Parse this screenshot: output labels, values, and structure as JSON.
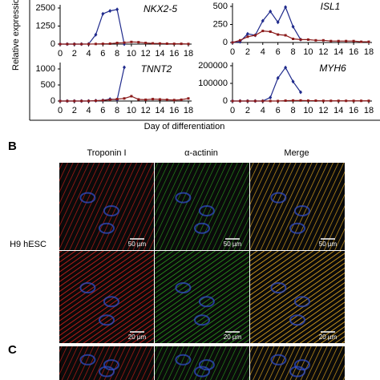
{
  "chart_data": [
    {
      "type": "line",
      "title": "NKX2-5",
      "x": [
        0,
        1,
        2,
        3,
        4,
        5,
        6,
        7,
        8,
        9,
        10,
        11,
        12,
        13,
        14,
        15,
        16,
        17,
        18
      ],
      "xlim": [
        0,
        18
      ],
      "xticks": [
        0,
        2,
        4,
        6,
        8,
        10,
        12,
        14,
        16,
        18
      ],
      "ylim": [
        0,
        2500
      ],
      "yticks": [
        0,
        1250,
        2500
      ],
      "series": [
        {
          "color": "#1f2a8c",
          "marker": "diamond",
          "values": [
            0,
            0,
            0,
            0,
            10,
            650,
            2100,
            2300,
            2400,
            0,
            null,
            null,
            null,
            null,
            null,
            null,
            null,
            null,
            null
          ]
        },
        {
          "color": "#8b1a1a",
          "marker": "square",
          "values": [
            0,
            0,
            0,
            0,
            0,
            10,
            20,
            30,
            80,
            100,
            150,
            130,
            80,
            50,
            40,
            30,
            20,
            20,
            10
          ]
        }
      ]
    },
    {
      "type": "line",
      "title": "ISL1",
      "x": [
        0,
        1,
        2,
        3,
        4,
        5,
        6,
        7,
        8,
        9,
        10,
        11,
        12,
        13,
        14,
        15,
        16,
        17,
        18
      ],
      "xlim": [
        0,
        18
      ],
      "xticks": [
        0,
        2,
        4,
        6,
        8,
        10,
        12,
        14,
        16,
        18
      ],
      "ylim": [
        0,
        500
      ],
      "yticks": [
        0,
        250,
        500
      ],
      "series": [
        {
          "color": "#1f2a8c",
          "marker": "diamond",
          "values": [
            0,
            10,
            120,
            100,
            300,
            430,
            280,
            490,
            220,
            40,
            null,
            null,
            null,
            null,
            null,
            null,
            null,
            null,
            null
          ]
        },
        {
          "color": "#8b1a1a",
          "marker": "square",
          "values": [
            0,
            30,
            80,
            100,
            160,
            150,
            110,
            100,
            50,
            40,
            40,
            30,
            30,
            20,
            20,
            20,
            20,
            10,
            10
          ]
        }
      ]
    },
    {
      "type": "line",
      "title": "TNNT2",
      "x": [
        0,
        1,
        2,
        3,
        4,
        5,
        6,
        7,
        8,
        9,
        10,
        11,
        12,
        13,
        14,
        15,
        16,
        17,
        18
      ],
      "xlim": [
        0,
        18
      ],
      "xticks": [
        0,
        2,
        4,
        6,
        8,
        10,
        12,
        14,
        16,
        18
      ],
      "ylim": [
        0,
        1100
      ],
      "yticks": [
        0,
        500,
        1000
      ],
      "series": [
        {
          "color": "#1f2a8c",
          "marker": "diamond",
          "values": [
            0,
            0,
            0,
            0,
            0,
            10,
            20,
            60,
            40,
            1050,
            null,
            null,
            null,
            null,
            null,
            null,
            null,
            null,
            null
          ]
        },
        {
          "color": "#8b1a1a",
          "marker": "square",
          "values": [
            0,
            0,
            0,
            0,
            0,
            10,
            20,
            40,
            60,
            80,
            150,
            50,
            40,
            60,
            50,
            40,
            30,
            40,
            80
          ]
        }
      ]
    },
    {
      "type": "line",
      "title": "MYH6",
      "x": [
        0,
        1,
        2,
        3,
        4,
        5,
        6,
        7,
        8,
        9,
        10,
        11,
        12,
        13,
        14,
        15,
        16,
        17,
        18
      ],
      "xlim": [
        0,
        18
      ],
      "xticks": [
        0,
        2,
        4,
        6,
        8,
        10,
        12,
        14,
        16,
        18
      ],
      "ylim": [
        0,
        200000
      ],
      "yticks": [
        0,
        100000,
        200000
      ],
      "series": [
        {
          "color": "#1f2a8c",
          "marker": "diamond",
          "values": [
            0,
            0,
            0,
            0,
            0,
            20000,
            130000,
            190000,
            110000,
            50000,
            null,
            null,
            null,
            null,
            null,
            null,
            null,
            null,
            null
          ]
        },
        {
          "color": "#8b1a1a",
          "marker": "square",
          "values": [
            0,
            0,
            0,
            0,
            0,
            0,
            0,
            2000,
            3000,
            3000,
            2000,
            2000,
            1000,
            1000,
            1000,
            1000,
            1000,
            1000,
            1000
          ]
        }
      ]
    }
  ],
  "figure": {
    "ylabel": "Relative expression",
    "xlabel": "Day of differentiation",
    "panels": [
      "B",
      "C"
    ],
    "columns": [
      "Troponin I",
      "α-actinin",
      "Merge"
    ],
    "row_label": "H9 hESC",
    "scale_bars": [
      "50 µm",
      "50 µm",
      "50 µm",
      "20 µm",
      "20 µm",
      "20 µm"
    ]
  }
}
